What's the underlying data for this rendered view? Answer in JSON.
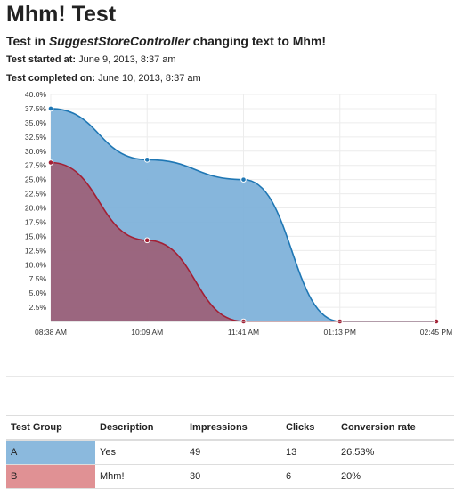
{
  "page": {
    "title": "Mhm! Test",
    "subtitle_prefix": "Test in ",
    "subtitle_controller": "SuggestStoreController",
    "subtitle_suffix": " changing text to Mhm!",
    "started_label": "Test started at:",
    "started_value": "June 9, 2013, 8:37 am",
    "completed_label": "Test completed on:",
    "completed_value": "June 10, 2013, 8:37 am"
  },
  "chart_data": {
    "type": "area",
    "categories": [
      "08:38 AM",
      "10:09 AM",
      "11:41 AM",
      "01:13 PM",
      "02:45 PM"
    ],
    "y_ticks": [
      "2.5%",
      "5.0%",
      "7.5%",
      "10.0%",
      "12.5%",
      "15.0%",
      "17.5%",
      "20.0%",
      "22.5%",
      "25.0%",
      "27.5%",
      "30.0%",
      "32.5%",
      "35.0%",
      "37.5%",
      "40.0%"
    ],
    "ylim": [
      0,
      40
    ],
    "grid": true,
    "series": [
      {
        "name": "A",
        "color": "#1f77b4",
        "fill": "#7fb2da",
        "values": [
          37.5,
          28.5,
          25.0,
          0,
          0
        ]
      },
      {
        "name": "B",
        "color": "#a32035",
        "fill": "#9c6279",
        "values": [
          28.0,
          14.3,
          0,
          0,
          0
        ]
      }
    ]
  },
  "table": {
    "headers": [
      "Test Group",
      "Description",
      "Impressions",
      "Clicks",
      "Conversion rate"
    ],
    "rows": [
      {
        "group": "A",
        "description": "Yes",
        "impressions": "49",
        "clicks": "13",
        "rate": "26.53%",
        "color": "#8bb9dd"
      },
      {
        "group": "B",
        "description": "Mhm!",
        "impressions": "30",
        "clicks": "6",
        "rate": "20%",
        "color": "#e09194"
      }
    ]
  }
}
